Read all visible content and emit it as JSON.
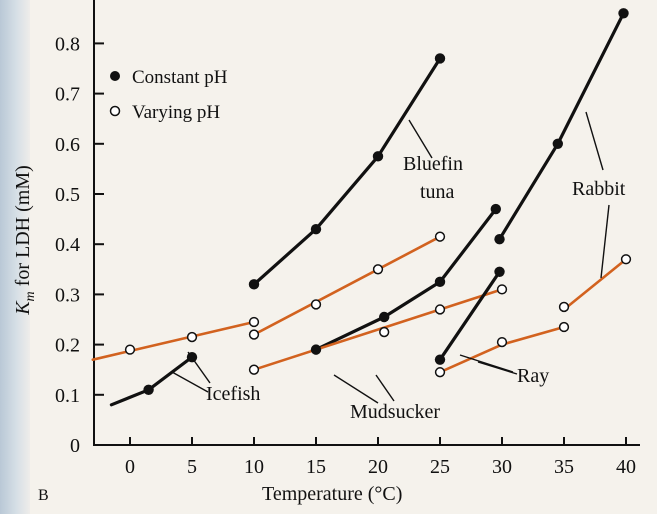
{
  "chart_data": {
    "type": "line",
    "panel_label": "B",
    "xlabel": "Temperature (°C)",
    "ylabel_main": "K",
    "ylabel_sub": "m",
    "ylabel_rest": " for LDH (mM)",
    "xlim": [
      -3,
      41
    ],
    "ylim": [
      0,
      0.85
    ],
    "xticks": [
      0,
      5,
      10,
      15,
      20,
      25,
      30,
      35,
      40
    ],
    "yticks": [
      0,
      0.1,
      0.2,
      0.3,
      0.4,
      0.5,
      0.6,
      0.7,
      0.8
    ],
    "legend": [
      {
        "label": "Constant pH",
        "marker": "filled"
      },
      {
        "label": "Varying pH",
        "marker": "open"
      }
    ],
    "colors": {
      "constant": "#111111",
      "varying": "#d2621f"
    },
    "series": [
      {
        "group": "Icefish",
        "kind": "constant",
        "line": [
          [
            -1.5,
            0.08
          ],
          [
            1.5,
            0.11
          ],
          [
            5,
            0.175
          ]
        ],
        "markers": [
          [
            1.5,
            0.11
          ],
          [
            5,
            0.175
          ]
        ]
      },
      {
        "group": "Icefish",
        "kind": "varying",
        "line": [
          [
            -3,
            0.17
          ],
          [
            10,
            0.245
          ]
        ],
        "markers": [
          [
            0,
            0.19
          ],
          [
            5,
            0.215
          ],
          [
            10,
            0.245
          ]
        ]
      },
      {
        "group": "Bluefin tuna",
        "kind": "constant",
        "line": [
          [
            10,
            0.32
          ],
          [
            15,
            0.43
          ],
          [
            20,
            0.575
          ],
          [
            25,
            0.77
          ]
        ],
        "markers": [
          [
            10,
            0.32
          ],
          [
            15,
            0.43
          ],
          [
            20,
            0.575
          ],
          [
            25,
            0.77
          ]
        ]
      },
      {
        "group": "Bluefin tuna",
        "kind": "varying",
        "line": [
          [
            10,
            0.22
          ],
          [
            25,
            0.415
          ]
        ],
        "markers": [
          [
            10,
            0.22
          ],
          [
            15,
            0.28
          ],
          [
            20,
            0.35
          ],
          [
            25,
            0.415
          ]
        ]
      },
      {
        "group": "Mudsucker",
        "kind": "constant",
        "line": [
          [
            15,
            0.19
          ],
          [
            20.5,
            0.255
          ],
          [
            25,
            0.325
          ],
          [
            29.5,
            0.47
          ]
        ],
        "markers": [
          [
            15,
            0.19
          ],
          [
            20.5,
            0.255
          ],
          [
            25,
            0.325
          ],
          [
            29.5,
            0.47
          ]
        ]
      },
      {
        "group": "Mudsucker",
        "kind": "varying",
        "line": [
          [
            10,
            0.15
          ],
          [
            30,
            0.31
          ]
        ],
        "markers": [
          [
            10,
            0.15
          ],
          [
            20.5,
            0.225
          ],
          [
            25,
            0.27
          ],
          [
            30,
            0.31
          ]
        ]
      },
      {
        "group": "Ray",
        "kind": "constant",
        "line": [
          [
            25,
            0.17
          ],
          [
            29.8,
            0.345
          ]
        ],
        "markers": [
          [
            25,
            0.17
          ],
          [
            29.8,
            0.345
          ]
        ]
      },
      {
        "group": "Ray",
        "kind": "varying",
        "line": [
          [
            25,
            0.145
          ],
          [
            30,
            0.2
          ],
          [
            35,
            0.235
          ]
        ],
        "markers": [
          [
            25,
            0.145
          ],
          [
            30,
            0.205
          ],
          [
            35,
            0.235
          ]
        ]
      },
      {
        "group": "Rabbit",
        "kind": "constant",
        "line": [
          [
            29.8,
            0.41
          ],
          [
            34.5,
            0.6
          ],
          [
            39.8,
            0.86
          ]
        ],
        "markers": [
          [
            29.8,
            0.41
          ],
          [
            34.5,
            0.6
          ],
          [
            39.8,
            0.86
          ]
        ]
      },
      {
        "group": "Rabbit",
        "kind": "varying",
        "line": [
          [
            35,
            0.27
          ],
          [
            40,
            0.37
          ]
        ],
        "markers": [
          [
            35,
            0.275
          ],
          [
            40,
            0.37
          ]
        ]
      }
    ],
    "annotations": [
      {
        "text": "Icefish"
      },
      {
        "text": "Bluefin"
      },
      {
        "text": "tuna"
      },
      {
        "text": "Mudsucker"
      },
      {
        "text": "Ray"
      },
      {
        "text": "Rabbit"
      }
    ]
  }
}
